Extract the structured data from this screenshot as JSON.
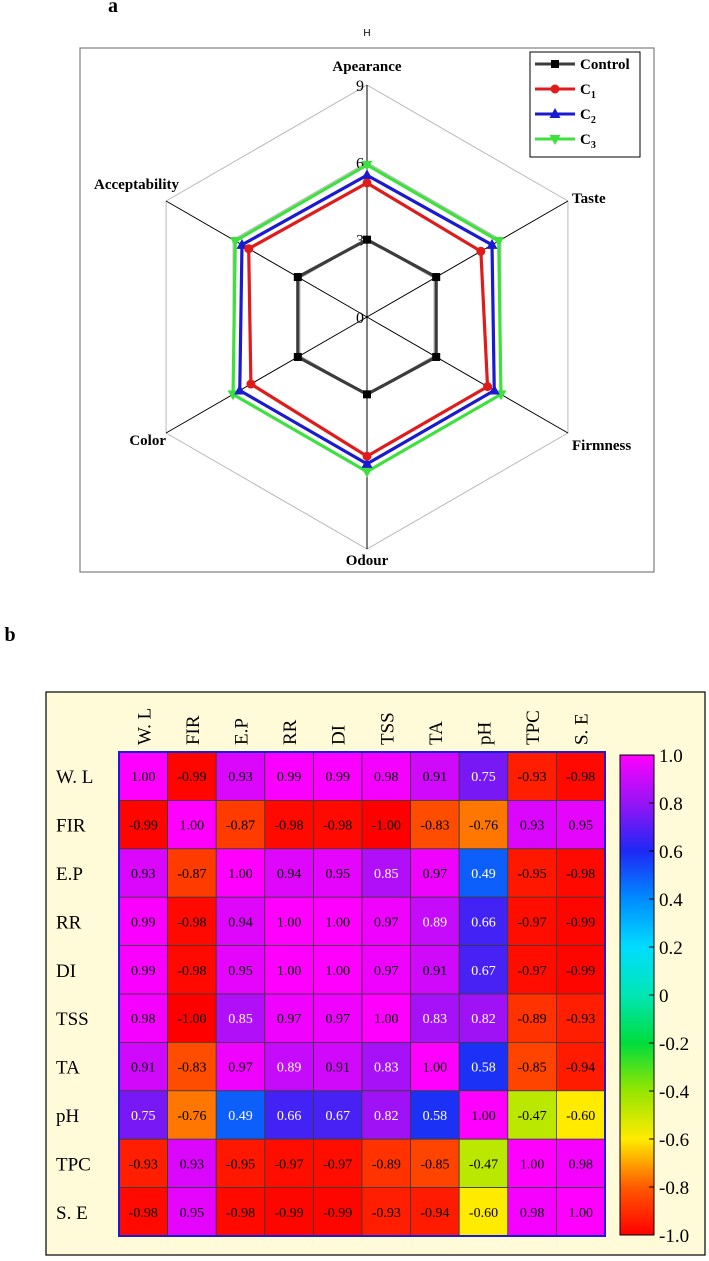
{
  "chart_data": [
    {
      "type": "radar",
      "panel_label": "a",
      "top_text": "H",
      "axes": [
        "Apearance",
        "Taste",
        "Firmness",
        "Odour",
        "Color",
        "Acceptability"
      ],
      "rlim": [
        0,
        9
      ],
      "r_ticks": [
        "0",
        "3",
        "6",
        "9"
      ],
      "grid": true,
      "legend_position": "top-right",
      "series": [
        {
          "name": "Control",
          "sub": "",
          "marker": "square",
          "color": "#3c3c3c",
          "values": [
            3.0,
            3.1,
            3.1,
            3.0,
            3.1,
            3.1
          ]
        },
        {
          "name": "C",
          "sub": "1",
          "marker": "circle",
          "color": "#e01b1b",
          "values": [
            5.2,
            5.1,
            5.4,
            5.4,
            5.2,
            5.3
          ]
        },
        {
          "name": "C",
          "sub": "2",
          "marker": "triangle-up",
          "color": "#1a1ad0",
          "values": [
            5.5,
            5.6,
            5.7,
            5.7,
            5.7,
            5.6
          ]
        },
        {
          "name": "C",
          "sub": "3",
          "marker": "triangle-down",
          "color": "#3ee03e",
          "values": [
            5.9,
            5.9,
            6.0,
            6.0,
            6.0,
            5.9
          ]
        }
      ]
    },
    {
      "type": "heatmap",
      "panel_label": "b",
      "variables": [
        "W. L",
        "FIR",
        "E.P",
        "RR",
        "DI",
        "TSS",
        "TA",
        "pH",
        "TPC",
        "S. E"
      ],
      "zlim": [
        -1.0,
        1.0
      ],
      "colorbar_ticks": [
        "1.0",
        "0.8",
        "0.6",
        "0.4",
        "0.2",
        "0",
        "-0.2",
        "-0.4",
        "-0.6",
        "-0.8",
        "-1.0"
      ],
      "colorbar_values": [
        1.0,
        0.8,
        0.6,
        0.4,
        0.2,
        0.0,
        -0.2,
        -0.4,
        -0.6,
        -0.8,
        -1.0
      ],
      "values": [
        [
          "1.00",
          "-0.99",
          "0.93",
          "0.99",
          "0.99",
          "0.98",
          "0.91",
          "0.75",
          "-0.93",
          "-0.98"
        ],
        [
          "-0.99",
          "1.00",
          "-0.87",
          "-0.98",
          "-0.98",
          "-1.00",
          "-0.83",
          "-0.76",
          "0.93",
          "0.95"
        ],
        [
          "0.93",
          "-0.87",
          "1.00",
          "0.94",
          "0.95",
          "0.85",
          "0.97",
          "0.49",
          "-0.95",
          "-0.98"
        ],
        [
          "0.99",
          "-0.98",
          "0.94",
          "1.00",
          "1.00",
          "0.97",
          "0.89",
          "0.66",
          "-0.97",
          "-0.99"
        ],
        [
          "0.99",
          "-0.98",
          "0.95",
          "1.00",
          "1.00",
          "0.97",
          "0.91",
          "0.67",
          "-0.97",
          "-0.99"
        ],
        [
          "0.98",
          "-1.00",
          "0.85",
          "0.97",
          "0.97",
          "1.00",
          "0.83",
          "0.82",
          "-0.89",
          "-0.93"
        ],
        [
          "0.91",
          "-0.83",
          "0.97",
          "0.89",
          "0.91",
          "0.83",
          "1.00",
          "0.58",
          "-0.85",
          "-0.94"
        ],
        [
          "0.75",
          "-0.76",
          "0.49",
          "0.66",
          "0.67",
          "0.82",
          "0.58",
          "1.00",
          "-0.47",
          "-0.60"
        ],
        [
          "-0.93",
          "0.93",
          "-0.95",
          "-0.97",
          "-0.97",
          "-0.89",
          "-0.85",
          "-0.47",
          "1.00",
          "0.98"
        ],
        [
          "-0.98",
          "0.95",
          "-0.98",
          "-0.99",
          "-0.99",
          "-0.93",
          "-0.94",
          "-0.60",
          "0.98",
          "1.00"
        ]
      ]
    }
  ]
}
